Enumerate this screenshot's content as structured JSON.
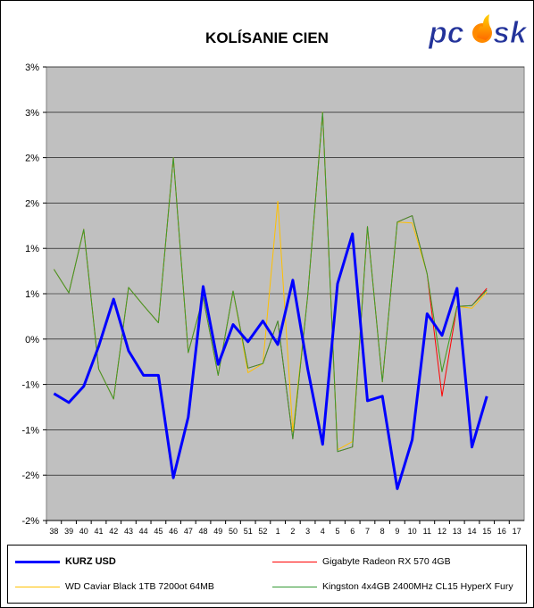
{
  "logo": {
    "text": "pcosk"
  },
  "chart_data": {
    "type": "line",
    "title": "KOLÍSANIE CIEN",
    "xlabel": "",
    "ylabel": "",
    "categories": [
      "38",
      "39",
      "40",
      "41",
      "42",
      "43",
      "44",
      "45",
      "46",
      "47",
      "48",
      "49",
      "50",
      "51",
      "52",
      "1",
      "2",
      "3",
      "4",
      "5",
      "6",
      "7",
      "8",
      "9",
      "10",
      "11",
      "12",
      "13",
      "14",
      "15",
      "16",
      "17"
    ],
    "y_tick_labels": [
      "3%",
      "3%",
      "2%",
      "2%",
      "1%",
      "1%",
      "0%",
      "-1%",
      "-1%",
      "-2%",
      "-2%"
    ],
    "y_tick_values": [
      3.0,
      2.5,
      2.0,
      1.5,
      1.0,
      0.5,
      0.0,
      -0.5,
      -1.0,
      -1.5,
      -2.0
    ],
    "ylim": [
      -2.0,
      3.0
    ],
    "grid": true,
    "legend_position": "bottom",
    "series": [
      {
        "name": "KURZ USD",
        "color": "#0000ff",
        "values": [
          -0.6,
          -0.7,
          -0.52,
          -0.08,
          0.44,
          -0.13,
          -0.4,
          -0.4,
          -1.53,
          -0.86,
          0.58,
          -0.28,
          0.16,
          -0.03,
          0.2,
          -0.06,
          0.65,
          -0.33,
          -1.16,
          0.61,
          1.16,
          -0.68,
          -0.63,
          -1.65,
          -1.11,
          0.28,
          0.04,
          0.56,
          -1.19,
          -0.63,
          null,
          null
        ]
      },
      {
        "name": "Gigabyte Radeon RX 570 4GB",
        "color": "#ff0000",
        "values": [
          0.77,
          0.51,
          1.21,
          -0.33,
          -0.66,
          0.57,
          0.37,
          0.18,
          2.0,
          -0.15,
          0.46,
          -0.4,
          0.53,
          -0.32,
          -0.27,
          0.2,
          -1.1,
          0.48,
          2.5,
          -1.24,
          -1.19,
          1.24,
          -0.47,
          1.29,
          1.36,
          0.72,
          -0.63,
          0.36,
          0.37,
          0.56,
          null,
          null
        ]
      },
      {
        "name": "WD Caviar Black 1TB 7200ot 64MB",
        "color": "#ffc000",
        "values": [
          0.77,
          0.51,
          1.21,
          -0.33,
          -0.66,
          0.57,
          0.37,
          0.18,
          2.0,
          -0.15,
          0.46,
          -0.4,
          0.53,
          -0.37,
          -0.27,
          1.52,
          -1.02,
          0.48,
          2.5,
          -1.22,
          -1.13,
          1.24,
          -0.47,
          1.29,
          1.28,
          0.72,
          -0.36,
          0.36,
          0.34,
          0.52,
          null,
          null
        ]
      },
      {
        "name": "Kingston 4x4GB 2400MHz CL15 HyperX Fury",
        "color": "#339933",
        "values": [
          0.77,
          0.51,
          1.21,
          -0.33,
          -0.66,
          0.57,
          0.37,
          0.18,
          2.0,
          -0.15,
          0.46,
          -0.4,
          0.53,
          -0.32,
          -0.27,
          0.2,
          -1.1,
          0.48,
          2.5,
          -1.24,
          -1.19,
          1.24,
          -0.47,
          1.29,
          1.36,
          0.72,
          -0.36,
          0.36,
          0.37,
          0.54,
          null,
          null
        ]
      }
    ]
  }
}
